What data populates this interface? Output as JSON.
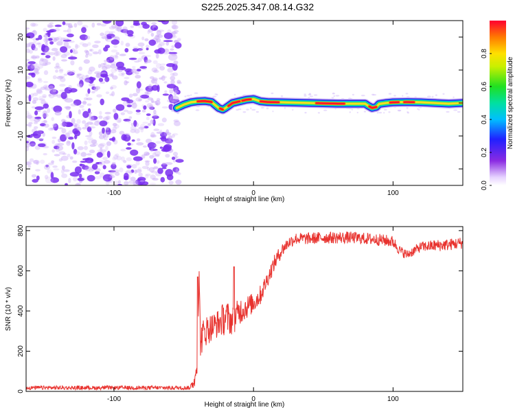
{
  "title": "S225.2025.347.08.14.G32",
  "colors": {
    "snr_line": "#e8322e",
    "noise_purple": "#7a2ff0",
    "background": "#ffffff"
  },
  "chart_data": [
    {
      "type": "heatmap",
      "title": "S225.2025.347.08.14.G32",
      "xlabel": "Height of straight line (km)",
      "ylabel": "Frequency (Hz)",
      "xlim": [
        -163,
        150
      ],
      "ylim": [
        -25,
        25
      ],
      "xticks": [
        -100,
        0,
        100
      ],
      "yticks": [
        -20,
        -10,
        0,
        10,
        20
      ],
      "ytick_labels": [
        "-20",
        "-10",
        "0",
        "10",
        "20"
      ],
      "xtick_labels": [
        "-100",
        "0",
        "100"
      ],
      "noise_region_x": [
        -163,
        -53
      ],
      "signal_trace": {
        "x": [
          -55,
          -50,
          -45,
          -40,
          -35,
          -30,
          -25,
          -22,
          -20,
          -15,
          -10,
          -5,
          0,
          5,
          10,
          20,
          40,
          60,
          80,
          82,
          85,
          88,
          90,
          95,
          100,
          110,
          120,
          130,
          140,
          150
        ],
        "y": [
          -1.5,
          -0.5,
          0.2,
          0.5,
          0.6,
          0.3,
          -1.5,
          -2.0,
          -1.5,
          0.0,
          0.5,
          1.0,
          1.2,
          0.5,
          0.3,
          0.2,
          0.0,
          -0.2,
          -0.2,
          -0.8,
          -1.5,
          -1.2,
          -0.3,
          0.0,
          0.2,
          0.3,
          0.2,
          0.0,
          -0.2,
          0.0
        ]
      },
      "hot_segments_x": [
        [
          -40,
          -30
        ],
        [
          -24,
          -22
        ],
        [
          -18,
          -10
        ],
        [
          -8,
          -2
        ],
        [
          5,
          18
        ],
        [
          45,
          65
        ],
        [
          83,
          88
        ],
        [
          98,
          104
        ],
        [
          108,
          115
        ]
      ],
      "colorbar": {
        "label": "Normalized spectral amplitude",
        "ticks": [
          0.0,
          0.2,
          0.4,
          0.6,
          0.8
        ],
        "tick_labels": [
          "0.0",
          "0.2",
          "0.4",
          "0.6",
          "0.8"
        ],
        "range": [
          0,
          1
        ]
      }
    },
    {
      "type": "line",
      "xlabel": "Height of straight line (km)",
      "ylabel": "SNR (10 * v/v)",
      "xlim": [
        -163,
        150
      ],
      "ylim": [
        0,
        820
      ],
      "xticks": [
        -100,
        0,
        100
      ],
      "xtick_labels": [
        "-100",
        "0",
        "100"
      ],
      "yticks": [
        0,
        200,
        400,
        600,
        800
      ],
      "ytick_labels": [
        "0",
        "200",
        "400",
        "600",
        "800"
      ],
      "series": [
        {
          "name": "SNR",
          "x": [
            -163,
            -45,
            -42,
            -40,
            -39,
            -38,
            -35,
            -30,
            -25,
            -20,
            -15,
            -10,
            -5,
            0,
            5,
            10,
            15,
            20,
            25,
            30,
            40,
            50,
            60,
            70,
            80,
            90,
            100,
            105,
            110,
            115,
            120,
            130,
            140,
            150
          ],
          "y": [
            18,
            18,
            60,
            200,
            570,
            250,
            300,
            320,
            340,
            370,
            350,
            400,
            420,
            440,
            480,
            560,
            640,
            700,
            740,
            760,
            760,
            765,
            765,
            765,
            760,
            755,
            745,
            700,
            680,
            700,
            720,
            725,
            730,
            740
          ],
          "noise_amplitude": [
            18,
            18,
            40,
            90,
            40,
            80,
            80,
            70,
            70,
            90,
            70,
            70,
            60,
            50,
            50,
            40,
            40,
            35,
            30,
            30,
            30,
            30,
            30,
            30,
            30,
            30,
            30,
            25,
            25,
            25,
            25,
            30,
            30,
            30
          ]
        }
      ]
    }
  ]
}
